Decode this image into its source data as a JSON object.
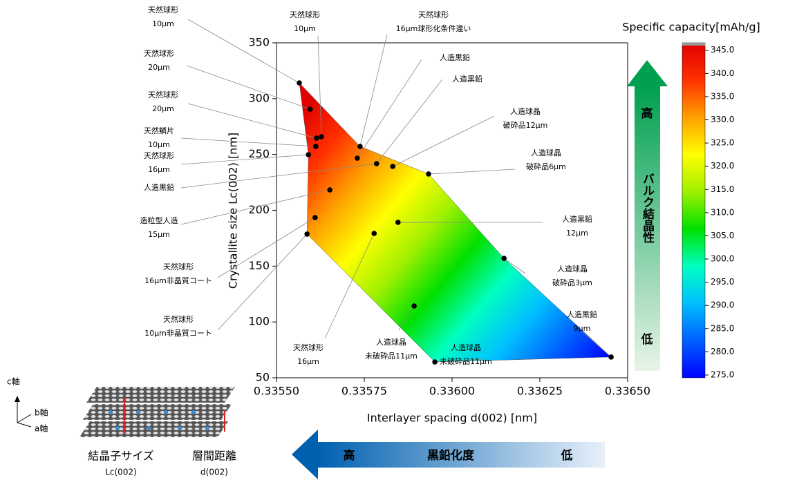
{
  "chart_data": {
    "type": "scatter",
    "x_label": "Interlayer spacing d(002) [nm]",
    "y_label": "Crystallite size Lc(002) [nm]",
    "xlim": [
      0.3355,
      0.3365
    ],
    "xticks": [
      {
        "value": 0.3355,
        "label": "0.33550"
      },
      0.33575,
      {
        "value": 0.336,
        "label": "0.33600"
      },
      0.33625,
      {
        "value": 0.3365,
        "label": "0.33650"
      }
    ],
    "ylim": [
      50,
      350
    ],
    "yticks": [
      50,
      100,
      150,
      200,
      250,
      300,
      350
    ],
    "series": [
      {
        "color": "#000000",
        "x": [
          0.335565,
          0.335596,
          0.335614,
          0.335628,
          0.335612,
          0.335591,
          0.335738,
          0.33573,
          0.335785,
          0.335831,
          0.335933,
          0.335652,
          0.33561,
          0.335846,
          0.335587,
          0.335778,
          0.336148,
          0.335892,
          0.335951,
          0.336453
        ],
        "values": [
          314.1,
          290.6,
          264.6,
          265.9,
          257.2,
          249.8,
          257.2,
          246.7,
          241.8,
          239.3,
          232.5,
          218.3,
          193.5,
          189.2,
          178.7,
          179.3,
          157.0,
          114.3,
          64.2,
          68.6
        ]
      }
    ],
    "annotations": [
      {
        "lines": [
          "天然球形",
          "10μm"
        ]
      },
      {
        "lines": [
          "天然球形",
          "20μm"
        ]
      },
      {
        "lines": [
          "天然球形",
          "20μm"
        ]
      },
      {
        "lines": [
          "天然鱗片",
          "10μm"
        ]
      },
      {
        "lines": [
          "天然球形",
          "16μm"
        ]
      },
      {
        "lines": [
          "人造黒鉛"
        ]
      },
      {
        "lines": [
          "造粒型人造",
          "15μm"
        ]
      },
      {
        "lines": [
          "天然球形",
          "16μm非晶質コート"
        ]
      },
      {
        "lines": [
          "天然球形",
          "10μm非晶質コート"
        ]
      },
      {
        "lines": [
          "天然球形",
          "10μm"
        ]
      },
      {
        "lines": [
          "天然球形",
          "16μm球形化条件違い"
        ]
      },
      {
        "lines": [
          "人造黒鉛"
        ]
      },
      {
        "lines": [
          "人造黒鉛"
        ]
      },
      {
        "lines": [
          "人造球晶",
          "破砕品12μm"
        ]
      },
      {
        "lines": [
          "人造球晶",
          "破砕品6μm"
        ]
      },
      {
        "lines": [
          "人造黒鉛",
          "12μm"
        ]
      },
      {
        "lines": [
          "人造球晶",
          "破砕品3μm"
        ]
      },
      {
        "lines": [
          "人造黒鉛",
          "9μm"
        ]
      },
      {
        "lines": [
          "人造球晶",
          "未破砕品11μm"
        ]
      },
      {
        "lines": [
          "人造球晶",
          "未破砕品11μm"
        ]
      },
      {
        "lines": [
          "天然球形",
          "16μm"
        ]
      }
    ],
    "colorbar": {
      "title": "Specific capacity[mAh/g]",
      "lim": [
        274.4,
        346.6
      ],
      "colors": [
        "#0000ff",
        "#0060ff",
        "#00c0ff",
        "#00ffc0",
        "#00e000",
        "#a0f000",
        "#ffff00",
        "#ffa000",
        "#ff3000",
        "#e00000"
      ],
      "ticks": [
        {
          "value": 275,
          "label": "275.0"
        },
        {
          "value": 280,
          "label": "280.0"
        },
        {
          "value": 285,
          "label": "285.0"
        },
        {
          "value": 290,
          "label": "290.0"
        },
        {
          "value": 295,
          "label": "295.0"
        },
        {
          "value": 300,
          "label": "300.0"
        },
        {
          "value": 305,
          "label": "305.0"
        },
        {
          "value": 310,
          "label": "310.0"
        },
        {
          "value": 315,
          "label": "315.0"
        },
        {
          "value": 320,
          "label": "320.0"
        },
        {
          "value": 325,
          "label": "325.0"
        },
        {
          "value": 330,
          "label": "330.0"
        },
        {
          "value": 335,
          "label": "335.0"
        },
        {
          "value": 340,
          "label": "340.0"
        },
        {
          "value": 345,
          "label": "345.0"
        }
      ]
    }
  },
  "right_arrow": {
    "high": "高",
    "label": "バルク結晶性",
    "low": "低"
  },
  "bottom_arrow": {
    "high": "高",
    "label": "黒鉛化度",
    "low": "低"
  },
  "crystal_diagram": {
    "c_axis": "c軸",
    "b_axis": "b軸",
    "a_axis": "a軸",
    "size_label": "結晶子サイズ",
    "size_symbol": "Lc(002)",
    "spacing_label": "層間距離",
    "spacing_symbol": "d(002)"
  }
}
